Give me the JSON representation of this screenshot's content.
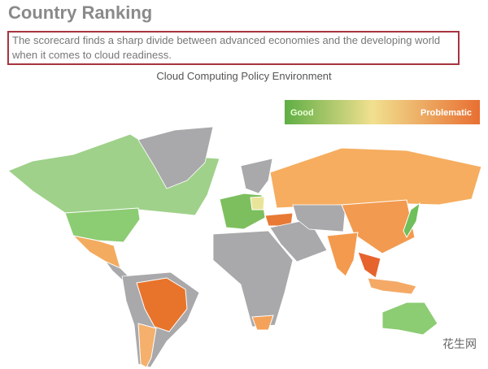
{
  "header": {
    "title": "Country Ranking"
  },
  "summary": "The scorecard finds a sharp divide between advanced economies and the developing world when it comes to cloud readiness.",
  "map": {
    "title": "Cloud Computing Policy Environment",
    "legend": {
      "low_label": "Good",
      "high_label": "Problematic"
    }
  },
  "watermark": "花生网"
}
